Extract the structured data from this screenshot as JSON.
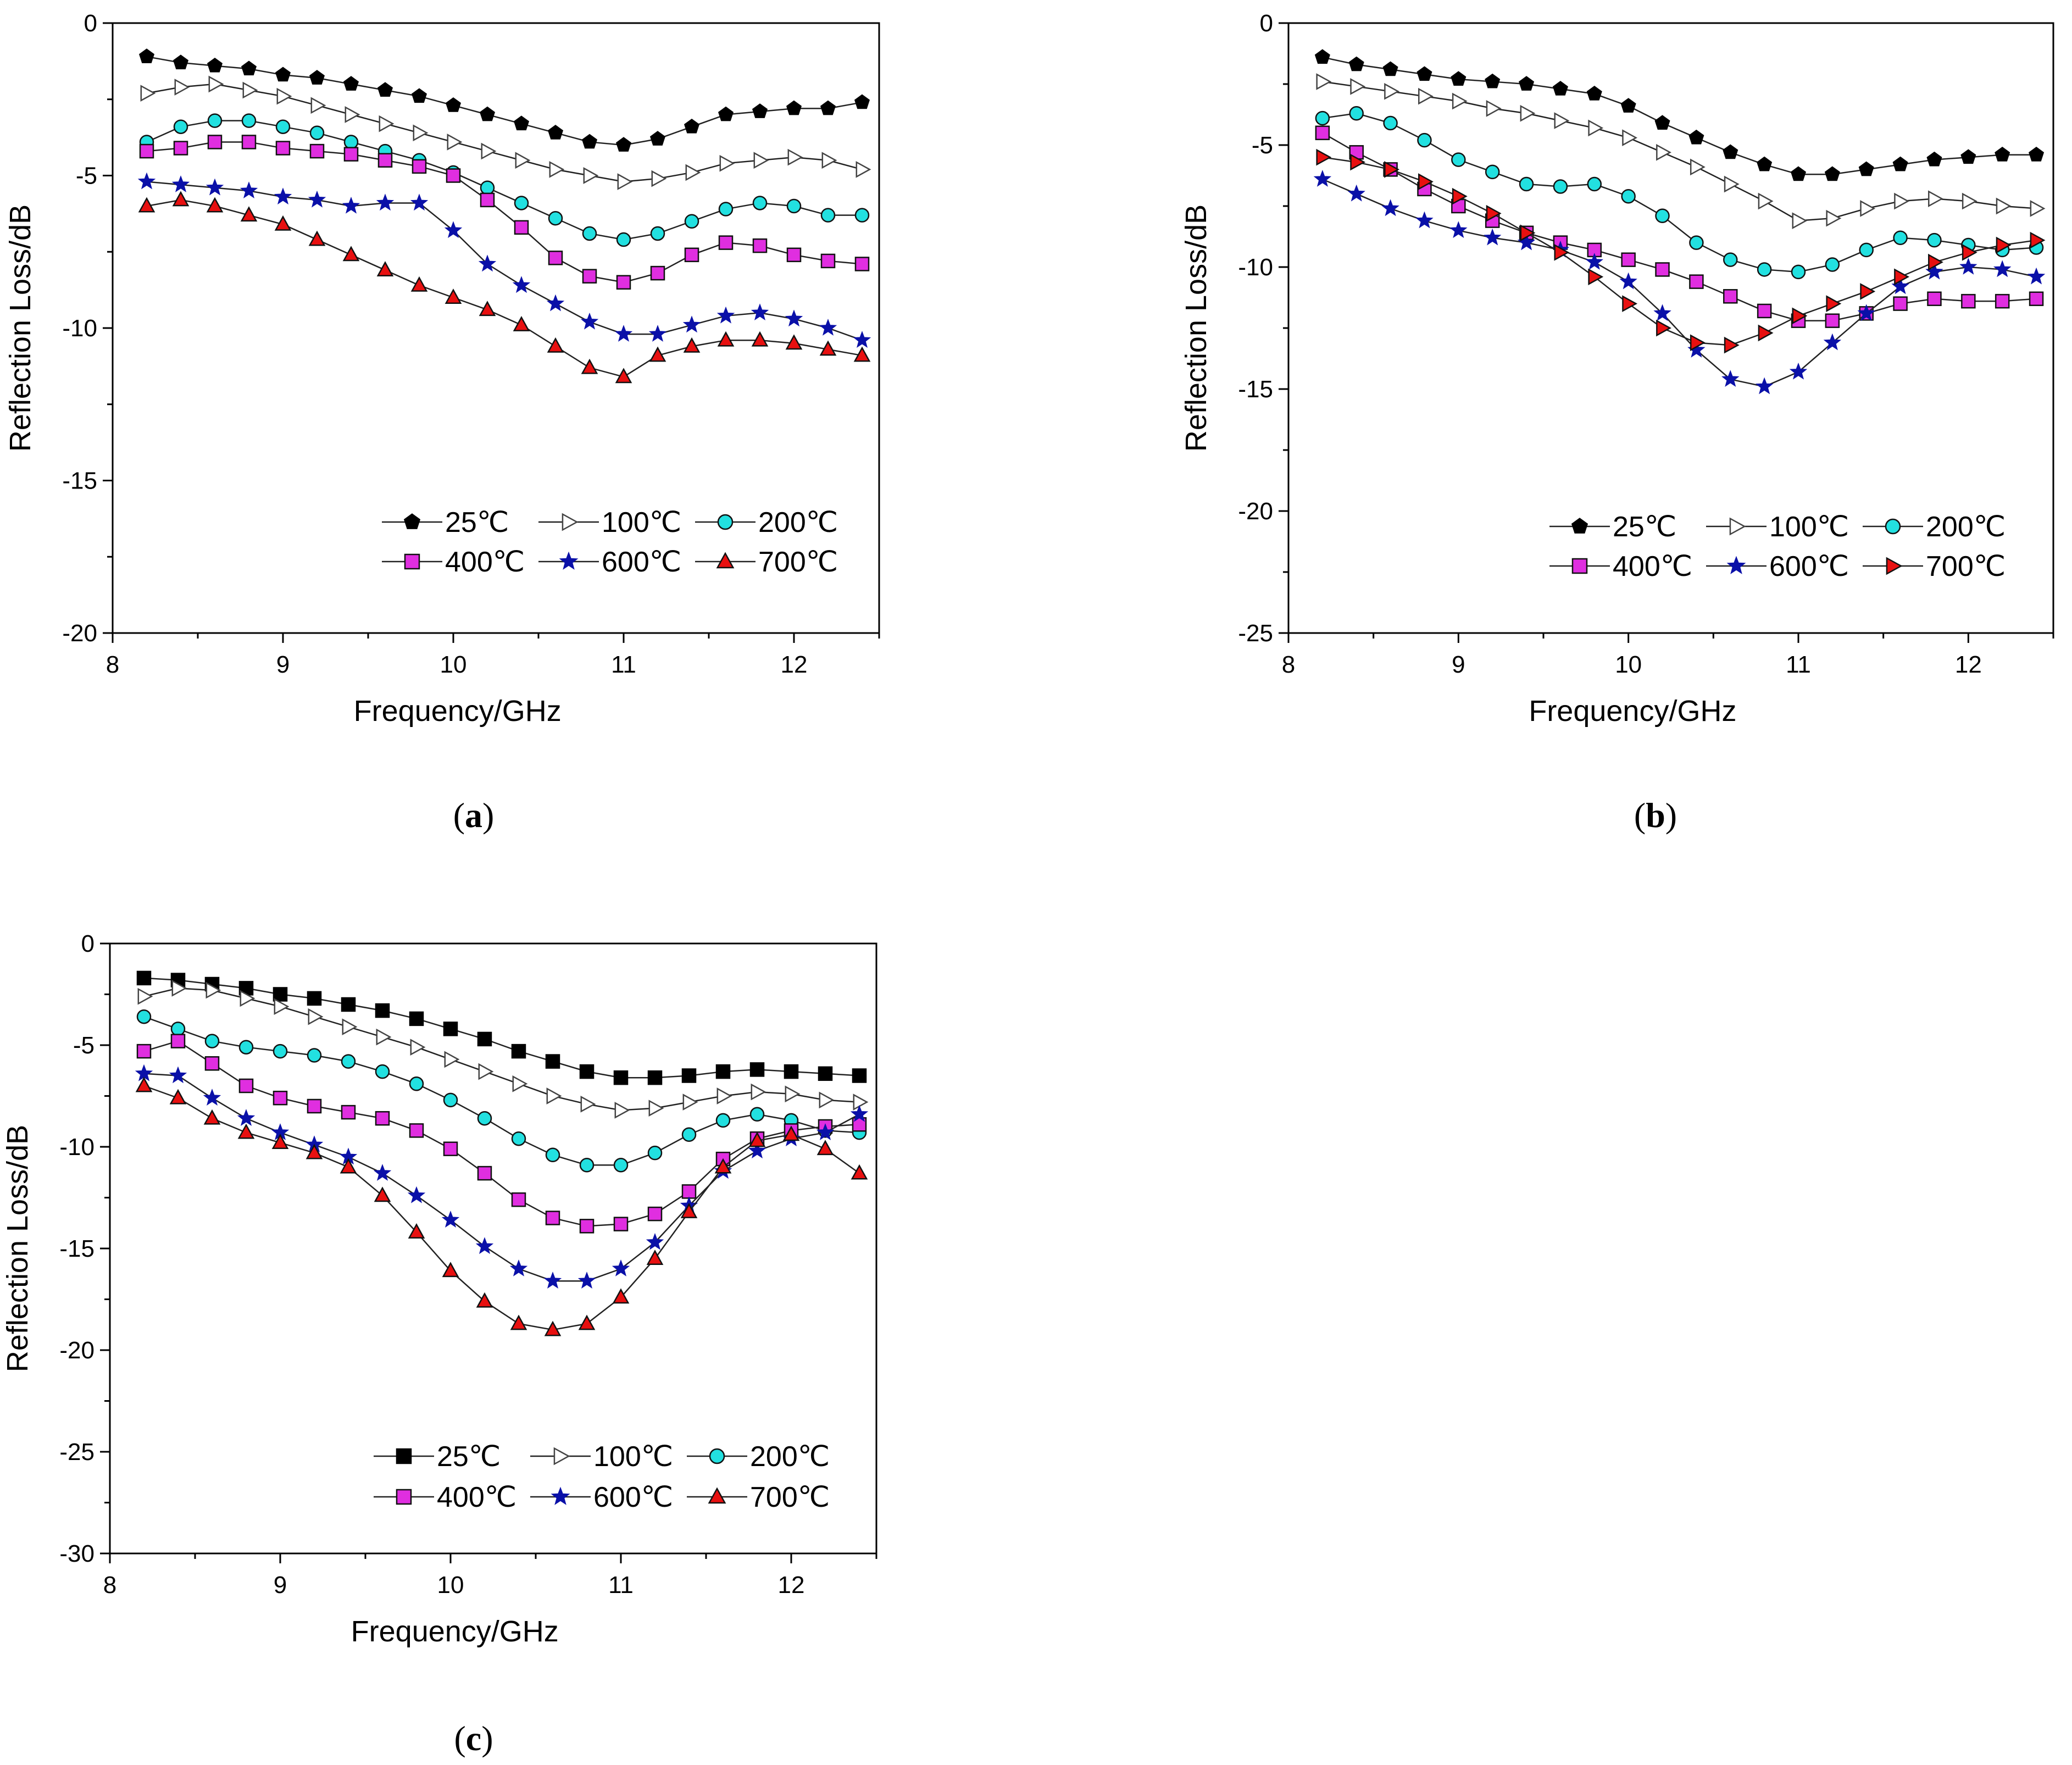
{
  "figure": {
    "panels": [
      "a",
      "b",
      "c"
    ]
  },
  "chart_data": [
    {
      "id": "a",
      "type": "line",
      "panel_label": "a",
      "xlabel": "Frequency/GHz",
      "ylabel": "Reflection Loss/dB",
      "xlim": [
        8,
        12.5
      ],
      "ylim": [
        -20,
        0
      ],
      "xticks": [
        8,
        9,
        10,
        11,
        12
      ],
      "yticks": [
        0,
        -5,
        -10,
        -15,
        -20
      ],
      "legend_position": "lower-right",
      "series": [
        {
          "name": "25℃",
          "marker": "pentagon",
          "color": "#000000",
          "fill": "#000000",
          "x": [
            8.2,
            8.4,
            8.6,
            8.8,
            9.0,
            9.2,
            9.4,
            9.6,
            9.8,
            10.0,
            10.2,
            10.4,
            10.6,
            10.8,
            11.0,
            11.2,
            11.4,
            11.6,
            11.8,
            12.0,
            12.2,
            12.4
          ],
          "y": [
            -1.1,
            -1.3,
            -1.4,
            -1.5,
            -1.7,
            -1.8,
            -2.0,
            -2.2,
            -2.4,
            -2.7,
            -3.0,
            -3.3,
            -3.6,
            -3.9,
            -4.0,
            -3.8,
            -3.4,
            -3.0,
            -2.9,
            -2.8,
            -2.8,
            -2.6
          ]
        },
        {
          "name": "100℃",
          "marker": "triangle-right-open",
          "color": "#444444",
          "fill": "#ffffff",
          "x": [
            8.2,
            8.4,
            8.6,
            8.8,
            9.0,
            9.2,
            9.4,
            9.6,
            9.8,
            10.0,
            10.2,
            10.4,
            10.6,
            10.8,
            11.0,
            11.2,
            11.4,
            11.6,
            11.8,
            12.0,
            12.2,
            12.4
          ],
          "y": [
            -2.3,
            -2.1,
            -2.0,
            -2.2,
            -2.4,
            -2.7,
            -3.0,
            -3.3,
            -3.6,
            -3.9,
            -4.2,
            -4.5,
            -4.8,
            -5.0,
            -5.2,
            -5.1,
            -4.9,
            -4.6,
            -4.5,
            -4.4,
            -4.5,
            -4.8
          ]
        },
        {
          "name": "200℃",
          "marker": "circle",
          "color": "#111111",
          "fill": "#22e0e0",
          "x": [
            8.2,
            8.4,
            8.6,
            8.8,
            9.0,
            9.2,
            9.4,
            9.6,
            9.8,
            10.0,
            10.2,
            10.4,
            10.6,
            10.8,
            11.0,
            11.2,
            11.4,
            11.6,
            11.8,
            12.0,
            12.2,
            12.4
          ],
          "y": [
            -3.9,
            -3.4,
            -3.2,
            -3.2,
            -3.4,
            -3.6,
            -3.9,
            -4.2,
            -4.5,
            -4.9,
            -5.4,
            -5.9,
            -6.4,
            -6.9,
            -7.1,
            -6.9,
            -6.5,
            -6.1,
            -5.9,
            -6.0,
            -6.3,
            -6.3
          ]
        },
        {
          "name": "400℃",
          "marker": "square",
          "color": "#111111",
          "fill": "#e02ee0",
          "x": [
            8.2,
            8.4,
            8.6,
            8.8,
            9.0,
            9.2,
            9.4,
            9.6,
            9.8,
            10.0,
            10.2,
            10.4,
            10.6,
            10.8,
            11.0,
            11.2,
            11.4,
            11.6,
            11.8,
            12.0,
            12.2,
            12.4
          ],
          "y": [
            -4.2,
            -4.1,
            -3.9,
            -3.9,
            -4.1,
            -4.2,
            -4.3,
            -4.5,
            -4.7,
            -5.0,
            -5.8,
            -6.7,
            -7.7,
            -8.3,
            -8.5,
            -8.2,
            -7.6,
            -7.2,
            -7.3,
            -7.6,
            -7.8,
            -7.9
          ]
        },
        {
          "name": "600℃",
          "marker": "star",
          "color": "#111111",
          "fill": "#0a10a8",
          "x": [
            8.2,
            8.4,
            8.6,
            8.8,
            9.0,
            9.2,
            9.4,
            9.6,
            9.8,
            10.0,
            10.2,
            10.4,
            10.6,
            10.8,
            11.0,
            11.2,
            11.4,
            11.6,
            11.8,
            12.0,
            12.2,
            12.4
          ],
          "y": [
            -5.2,
            -5.3,
            -5.4,
            -5.5,
            -5.7,
            -5.8,
            -6.0,
            -5.9,
            -5.9,
            -6.8,
            -7.9,
            -8.6,
            -9.2,
            -9.8,
            -10.2,
            -10.2,
            -9.9,
            -9.6,
            -9.5,
            -9.7,
            -10.0,
            -10.4
          ]
        },
        {
          "name": "700℃",
          "marker": "triangle",
          "color": "#111111",
          "fill": "#e81010",
          "x": [
            8.2,
            8.4,
            8.6,
            8.8,
            9.0,
            9.2,
            9.4,
            9.6,
            9.8,
            10.0,
            10.2,
            10.4,
            10.6,
            10.8,
            11.0,
            11.2,
            11.4,
            11.6,
            11.8,
            12.0,
            12.2,
            12.4
          ],
          "y": [
            -6.0,
            -5.8,
            -6.0,
            -6.3,
            -6.6,
            -7.1,
            -7.6,
            -8.1,
            -8.6,
            -9.0,
            -9.4,
            -9.9,
            -10.6,
            -11.3,
            -11.6,
            -10.9,
            -10.6,
            -10.4,
            -10.4,
            -10.5,
            -10.7,
            -10.9
          ]
        }
      ]
    },
    {
      "id": "b",
      "type": "line",
      "panel_label": "b",
      "xlabel": "Frequency/GHz",
      "ylabel": "Reflection Loss/dB",
      "xlim": [
        8,
        12.5
      ],
      "ylim": [
        -25,
        0
      ],
      "xticks": [
        8,
        9,
        10,
        11,
        12
      ],
      "yticks": [
        0,
        -5,
        -10,
        -15,
        -20,
        -25
      ],
      "legend_position": "lower-right",
      "series": [
        {
          "name": "25℃",
          "marker": "pentagon",
          "color": "#000000",
          "fill": "#000000",
          "x": [
            8.2,
            8.4,
            8.6,
            8.8,
            9.0,
            9.2,
            9.4,
            9.6,
            9.8,
            10.0,
            10.2,
            10.4,
            10.6,
            10.8,
            11.0,
            11.2,
            11.4,
            11.6,
            11.8,
            12.0,
            12.2,
            12.4
          ],
          "y": [
            -1.4,
            -1.7,
            -1.9,
            -2.1,
            -2.3,
            -2.4,
            -2.5,
            -2.7,
            -2.9,
            -3.4,
            -4.1,
            -4.7,
            -5.3,
            -5.8,
            -6.2,
            -6.2,
            -6.0,
            -5.8,
            -5.6,
            -5.5,
            -5.4,
            -5.4
          ]
        },
        {
          "name": "100℃",
          "marker": "triangle-right-open",
          "color": "#444444",
          "fill": "#ffffff",
          "x": [
            8.2,
            8.4,
            8.6,
            8.8,
            9.0,
            9.2,
            9.4,
            9.6,
            9.8,
            10.0,
            10.2,
            10.4,
            10.6,
            10.8,
            11.0,
            11.2,
            11.4,
            11.6,
            11.8,
            12.0,
            12.2,
            12.4
          ],
          "y": [
            -2.4,
            -2.6,
            -2.8,
            -3.0,
            -3.2,
            -3.5,
            -3.7,
            -4.0,
            -4.3,
            -4.7,
            -5.3,
            -5.9,
            -6.6,
            -7.3,
            -8.1,
            -8.0,
            -7.6,
            -7.3,
            -7.2,
            -7.3,
            -7.5,
            -7.6
          ]
        },
        {
          "name": "200℃",
          "marker": "circle",
          "color": "#111111",
          "fill": "#22e0e0",
          "x": [
            8.2,
            8.4,
            8.6,
            8.8,
            9.0,
            9.2,
            9.4,
            9.6,
            9.8,
            10.0,
            10.2,
            10.4,
            10.6,
            10.8,
            11.0,
            11.2,
            11.4,
            11.6,
            11.8,
            12.0,
            12.2,
            12.4
          ],
          "y": [
            -3.9,
            -3.7,
            -4.1,
            -4.8,
            -5.6,
            -6.1,
            -6.6,
            -6.7,
            -6.6,
            -7.1,
            -7.9,
            -9.0,
            -9.7,
            -10.1,
            -10.2,
            -9.9,
            -9.3,
            -8.8,
            -8.9,
            -9.1,
            -9.3,
            -9.2
          ]
        },
        {
          "name": "400℃",
          "marker": "square",
          "color": "#111111",
          "fill": "#e02ee0",
          "x": [
            8.2,
            8.4,
            8.6,
            8.8,
            9.0,
            9.2,
            9.4,
            9.6,
            9.8,
            10.0,
            10.2,
            10.4,
            10.6,
            10.8,
            11.0,
            11.2,
            11.4,
            11.6,
            11.8,
            12.0,
            12.2,
            12.4
          ],
          "y": [
            -4.5,
            -5.3,
            -6.0,
            -6.8,
            -7.5,
            -8.1,
            -8.6,
            -9.0,
            -9.3,
            -9.7,
            -10.1,
            -10.6,
            -11.2,
            -11.8,
            -12.2,
            -12.2,
            -11.9,
            -11.5,
            -11.3,
            -11.4,
            -11.4,
            -11.3
          ]
        },
        {
          "name": "600℃",
          "marker": "star",
          "color": "#111111",
          "fill": "#0a10a8",
          "x": [
            8.2,
            8.4,
            8.6,
            8.8,
            9.0,
            9.2,
            9.4,
            9.6,
            9.8,
            10.0,
            10.2,
            10.4,
            10.6,
            10.8,
            11.0,
            11.2,
            11.4,
            11.6,
            11.8,
            12.0,
            12.2,
            12.4
          ],
          "y": [
            -6.4,
            -7.0,
            -7.6,
            -8.1,
            -8.5,
            -8.8,
            -9.0,
            -9.3,
            -9.8,
            -10.6,
            -11.9,
            -13.4,
            -14.6,
            -14.9,
            -14.3,
            -13.1,
            -11.9,
            -10.8,
            -10.2,
            -10.0,
            -10.1,
            -10.4
          ]
        },
        {
          "name": "700℃",
          "marker": "triangle-right",
          "color": "#111111",
          "fill": "#e81010",
          "x": [
            8.2,
            8.4,
            8.6,
            8.8,
            9.0,
            9.2,
            9.4,
            9.6,
            9.8,
            10.0,
            10.2,
            10.4,
            10.6,
            10.8,
            11.0,
            11.2,
            11.4,
            11.6,
            11.8,
            12.0,
            12.2,
            12.4
          ],
          "y": [
            -5.5,
            -5.7,
            -6.0,
            -6.5,
            -7.1,
            -7.8,
            -8.6,
            -9.4,
            -10.4,
            -11.5,
            -12.5,
            -13.1,
            -13.2,
            -12.7,
            -12.0,
            -11.5,
            -11.0,
            -10.4,
            -9.8,
            -9.4,
            -9.1,
            -8.9
          ]
        }
      ]
    },
    {
      "id": "c",
      "type": "line",
      "panel_label": "c",
      "xlabel": "Frequency/GHz",
      "ylabel": "Reflection Loss/dB",
      "xlim": [
        8,
        12.5
      ],
      "ylim": [
        -30,
        0
      ],
      "xticks": [
        8,
        9,
        10,
        11,
        12
      ],
      "yticks": [
        0,
        -5,
        -10,
        -15,
        -20,
        -25,
        -30
      ],
      "legend_position": "lower-right",
      "series": [
        {
          "name": "25℃",
          "marker": "square",
          "color": "#000000",
          "fill": "#000000",
          "x": [
            8.2,
            8.4,
            8.6,
            8.8,
            9.0,
            9.2,
            9.4,
            9.6,
            9.8,
            10.0,
            10.2,
            10.4,
            10.6,
            10.8,
            11.0,
            11.2,
            11.4,
            11.6,
            11.8,
            12.0,
            12.2,
            12.4
          ],
          "y": [
            -1.7,
            -1.8,
            -2.0,
            -2.2,
            -2.5,
            -2.7,
            -3.0,
            -3.3,
            -3.7,
            -4.2,
            -4.7,
            -5.3,
            -5.8,
            -6.3,
            -6.6,
            -6.6,
            -6.5,
            -6.3,
            -6.2,
            -6.3,
            -6.4,
            -6.5
          ]
        },
        {
          "name": "100℃",
          "marker": "triangle-right-open",
          "color": "#444444",
          "fill": "#ffffff",
          "x": [
            8.2,
            8.4,
            8.6,
            8.8,
            9.0,
            9.2,
            9.4,
            9.6,
            9.8,
            10.0,
            10.2,
            10.4,
            10.6,
            10.8,
            11.0,
            11.2,
            11.4,
            11.6,
            11.8,
            12.0,
            12.2,
            12.4
          ],
          "y": [
            -2.6,
            -2.2,
            -2.3,
            -2.7,
            -3.1,
            -3.6,
            -4.1,
            -4.6,
            -5.1,
            -5.7,
            -6.3,
            -6.9,
            -7.5,
            -7.9,
            -8.2,
            -8.1,
            -7.8,
            -7.5,
            -7.3,
            -7.4,
            -7.7,
            -7.8
          ]
        },
        {
          "name": "200℃",
          "marker": "circle",
          "color": "#111111",
          "fill": "#22e0e0",
          "x": [
            8.2,
            8.4,
            8.6,
            8.8,
            9.0,
            9.2,
            9.4,
            9.6,
            9.8,
            10.0,
            10.2,
            10.4,
            10.6,
            10.8,
            11.0,
            11.2,
            11.4,
            11.6,
            11.8,
            12.0,
            12.2,
            12.4
          ],
          "y": [
            -3.6,
            -4.2,
            -4.8,
            -5.1,
            -5.3,
            -5.5,
            -5.8,
            -6.3,
            -6.9,
            -7.7,
            -8.6,
            -9.6,
            -10.4,
            -10.9,
            -10.9,
            -10.3,
            -9.4,
            -8.7,
            -8.4,
            -8.7,
            -9.2,
            -9.3
          ]
        },
        {
          "name": "400℃",
          "marker": "square",
          "color": "#111111",
          "fill": "#e02ee0",
          "x": [
            8.2,
            8.4,
            8.6,
            8.8,
            9.0,
            9.2,
            9.4,
            9.6,
            9.8,
            10.0,
            10.2,
            10.4,
            10.6,
            10.8,
            11.0,
            11.2,
            11.4,
            11.6,
            11.8,
            12.0,
            12.2,
            12.4
          ],
          "y": [
            -5.3,
            -4.8,
            -5.9,
            -7.0,
            -7.6,
            -8.0,
            -8.3,
            -8.6,
            -9.2,
            -10.1,
            -11.3,
            -12.6,
            -13.5,
            -13.9,
            -13.8,
            -13.3,
            -12.2,
            -10.6,
            -9.6,
            -9.2,
            -9.0,
            -8.9
          ]
        },
        {
          "name": "600℃",
          "marker": "star",
          "color": "#111111",
          "fill": "#0a10a8",
          "x": [
            8.2,
            8.4,
            8.6,
            8.8,
            9.0,
            9.2,
            9.4,
            9.6,
            9.8,
            10.0,
            10.2,
            10.4,
            10.6,
            10.8,
            11.0,
            11.2,
            11.4,
            11.6,
            11.8,
            12.0,
            12.2,
            12.4
          ],
          "y": [
            -6.4,
            -6.5,
            -7.6,
            -8.6,
            -9.3,
            -9.9,
            -10.5,
            -11.3,
            -12.4,
            -13.6,
            -14.9,
            -16.0,
            -16.6,
            -16.6,
            -16.0,
            -14.7,
            -12.9,
            -11.2,
            -10.2,
            -9.6,
            -9.3,
            -8.4
          ]
        },
        {
          "name": "700℃",
          "marker": "triangle",
          "color": "#111111",
          "fill": "#e81010",
          "x": [
            8.2,
            8.4,
            8.6,
            8.8,
            9.0,
            9.2,
            9.4,
            9.6,
            9.8,
            10.0,
            10.2,
            10.4,
            10.6,
            10.8,
            11.0,
            11.2,
            11.4,
            11.6,
            11.8,
            12.0,
            12.2,
            12.4
          ],
          "y": [
            -7.0,
            -7.6,
            -8.6,
            -9.3,
            -9.8,
            -10.3,
            -11.0,
            -12.4,
            -14.2,
            -16.1,
            -17.6,
            -18.7,
            -19.0,
            -18.7,
            -17.4,
            -15.5,
            -13.2,
            -11.0,
            -9.7,
            -9.4,
            -10.1,
            -11.3
          ]
        }
      ]
    }
  ]
}
